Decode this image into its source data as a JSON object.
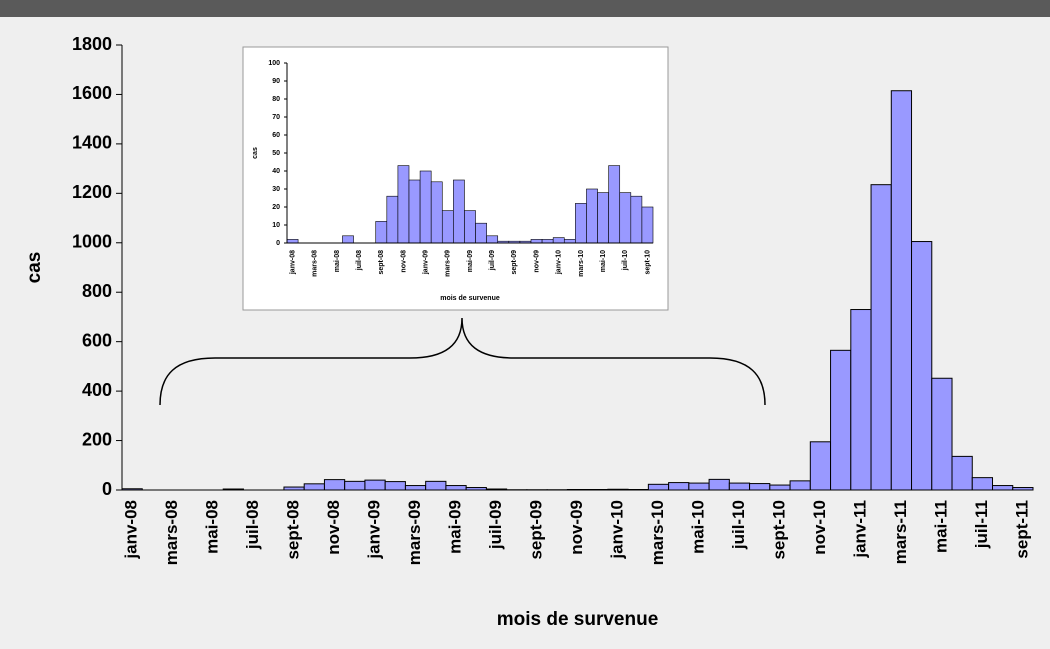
{
  "chart_data": [
    {
      "type": "bar",
      "x_label": "mois de survenue",
      "y_label": "cas",
      "color": "#9999ff",
      "grid": false,
      "categories": [
        "janv-08",
        null,
        "mars-08",
        null,
        "mai-08",
        null,
        "juil-08",
        null,
        "sept-08",
        null,
        "nov-08",
        null,
        "janv-09",
        null,
        "mars-09",
        null,
        "mai-09",
        null,
        "juil-09",
        null,
        "sept-09",
        null,
        "nov-09",
        null,
        "janv-10",
        null,
        "mars-10",
        null,
        "mai-10",
        null,
        "juil-10",
        null,
        "sept-10",
        null,
        "nov-10",
        null,
        "janv-11",
        null,
        "mars-11",
        null,
        "mai-11",
        null,
        "juil-11",
        null,
        "sept-11"
      ],
      "values": [
        5,
        0,
        0,
        0,
        0,
        4,
        0,
        0,
        12,
        25,
        42,
        35,
        40,
        34,
        18,
        35,
        18,
        10,
        4,
        1,
        1,
        1,
        2,
        2,
        3,
        2,
        23,
        30,
        28,
        43,
        28,
        26,
        20,
        37,
        195,
        565,
        730,
        1235,
        1615,
        1005,
        452,
        136,
        50,
        18,
        10
      ],
      "ylim": [
        0,
        1800
      ],
      "yticks": [
        0,
        200,
        400,
        600,
        800,
        1000,
        1200,
        1400,
        1600,
        1800
      ]
    },
    {
      "type": "bar",
      "x_label": "mois de survenue",
      "y_label": "cas",
      "color": "#9999ff",
      "grid": false,
      "categories": [
        "janv-08",
        null,
        "mars-08",
        null,
        "mai-08",
        null,
        "juil-08",
        null,
        "sept-08",
        null,
        "nov-08",
        null,
        "janv-09",
        null,
        "mars-09",
        null,
        "mai-09",
        null,
        "juil-09",
        null,
        "sept-09",
        null,
        "nov-09",
        null,
        "janv-10",
        null,
        "mars-10",
        null,
        "mai-10",
        null,
        "juil-10",
        null,
        "sept-10"
      ],
      "values": [
        2,
        0,
        0,
        0,
        0,
        4,
        0,
        0,
        12,
        26,
        43,
        35,
        40,
        34,
        18,
        35,
        18,
        11,
        4,
        1,
        1,
        1,
        2,
        2,
        3,
        2,
        22,
        30,
        28,
        43,
        28,
        26,
        20
      ],
      "ylim": [
        0,
        100
      ],
      "yticks": [
        0,
        10,
        20,
        30,
        40,
        50,
        60,
        70,
        80,
        90,
        100
      ]
    }
  ]
}
